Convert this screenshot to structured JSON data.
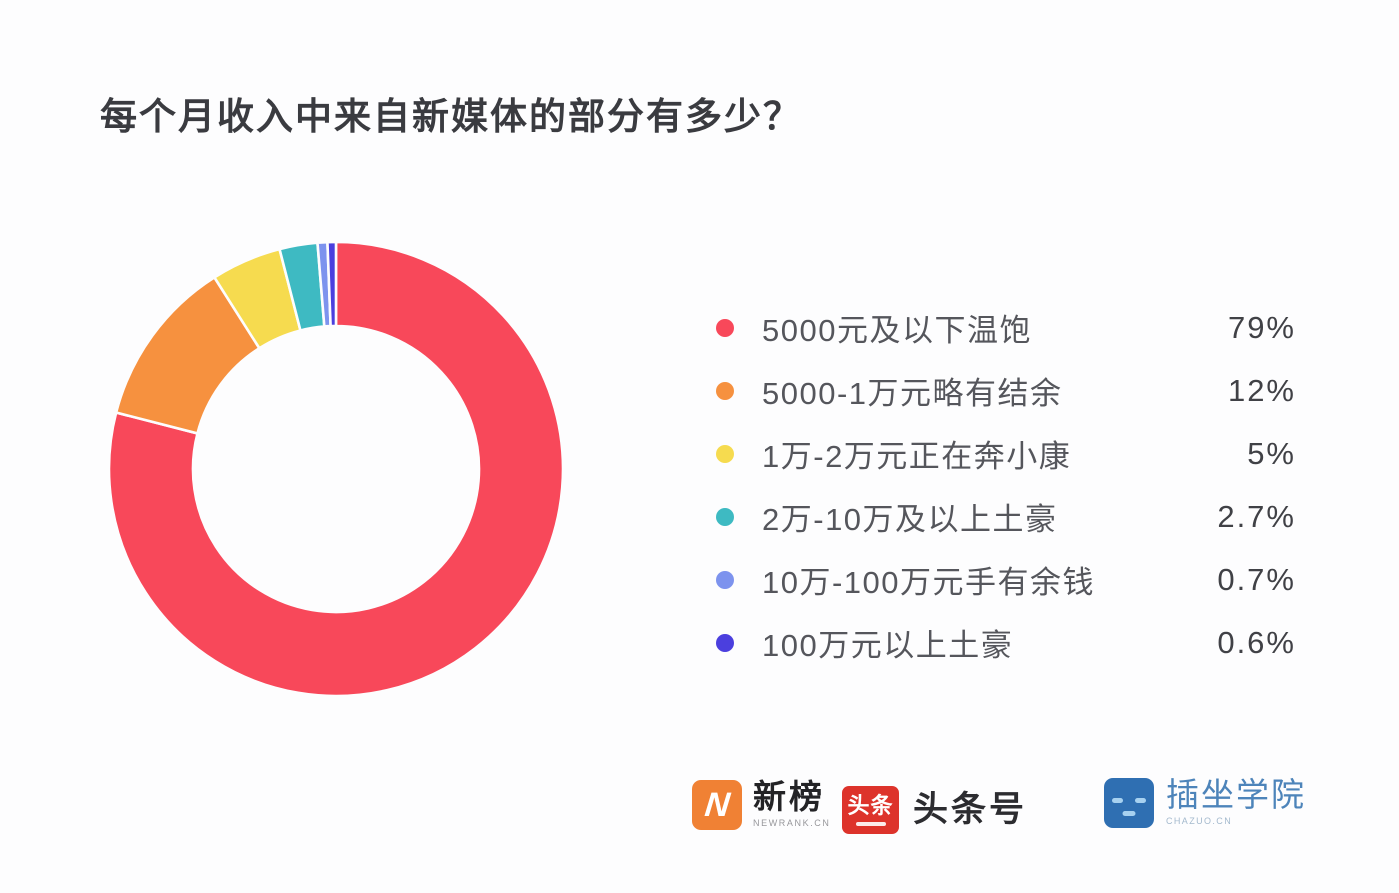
{
  "title": "每个月收入中来自新媒体的部分有多少？",
  "chart_data": {
    "type": "pie",
    "subtype": "donut",
    "title": "每个月收入中来自新媒体的部分有多少？",
    "categories": [
      "5000元及以下温饱",
      "5000-1万元略有结余",
      "1万-2万元正在奔小康",
      "2万-10万及以上土豪",
      "10万-100万元手有余钱",
      "100万元以上土豪"
    ],
    "values": [
      79,
      12,
      5,
      2.7,
      0.7,
      0.6
    ],
    "value_labels": [
      "79%",
      "12%",
      "5%",
      "2.7%",
      "0.7%",
      "0.6%"
    ],
    "colors": [
      "#F8485A",
      "#F6913F",
      "#F6DB4F",
      "#3EBAC2",
      "#7D93EE",
      "#4B3FDE"
    ],
    "start_angle_deg": 0,
    "direction": "clockwise",
    "inner_radius_ratio": 0.63,
    "slice_gap_color": "#fdfdfe",
    "legend_position": "right"
  },
  "footer": {
    "logos": [
      {
        "icon": "newrank-logo-icon",
        "icon_letter": "N",
        "text": "新榜",
        "subtext": "NEWRANK.CN"
      },
      {
        "icon": "toutiao-logo-icon",
        "icon_text": "头条",
        "text": "头条号"
      },
      {
        "icon": "chazuo-robot-icon",
        "text": "插坐学院",
        "subtext": "CHAZUO.CN"
      }
    ]
  }
}
